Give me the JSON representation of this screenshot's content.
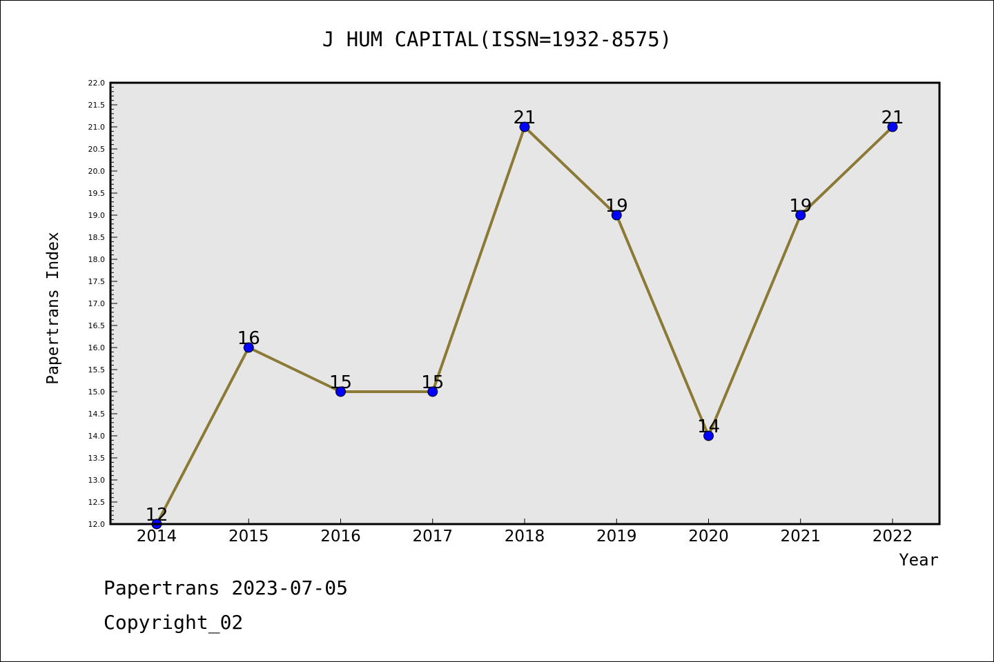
{
  "chart_data": {
    "type": "line",
    "title": "J HUM CAPITAL(ISSN=1932-8575)",
    "xlabel": "Year",
    "ylabel": "Papertrans Index",
    "categories": [
      "2014",
      "2015",
      "2016",
      "2017",
      "2018",
      "2019",
      "2020",
      "2021",
      "2022"
    ],
    "series": [
      {
        "values": [
          12,
          16,
          15,
          15,
          21,
          19,
          14,
          19,
          21
        ]
      }
    ],
    "data_labels": [
      "12",
      "16",
      "15",
      "15",
      "21",
      "19",
      "14",
      "19",
      "21"
    ],
    "ylim": [
      12.0,
      22.0
    ],
    "y_ticks": [
      "12.0",
      "12.5",
      "13.0",
      "13.5",
      "14.0",
      "14.5",
      "15.0",
      "15.5",
      "16.0",
      "16.5",
      "17.0",
      "17.5",
      "18.0",
      "18.5",
      "19.0",
      "19.5",
      "20.0",
      "20.5",
      "21.0",
      "21.5",
      "22.0"
    ],
    "grid": false,
    "legend": "none",
    "colors": {
      "line": "#8b7a35",
      "marker": "#0000ff",
      "plot_background": "#e6e6e6"
    }
  },
  "footer": {
    "line1": "Papertrans 2023-07-05",
    "line2": "Copyright_02"
  }
}
